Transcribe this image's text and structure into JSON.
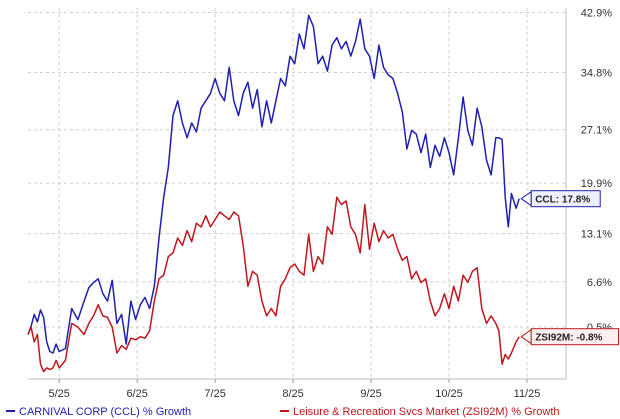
{
  "chart_data": {
    "type": "line",
    "x_ticks": [
      "5/25",
      "6/25",
      "7/25",
      "8/25",
      "9/25",
      "10/25",
      "11/25"
    ],
    "x_tick_positions": [
      0.4,
      1.4,
      2.4,
      3.4,
      4.4,
      5.4,
      6.4
    ],
    "xlim": [
      0,
      6.9
    ],
    "y_ticks": [
      "42.9%",
      "34.8%",
      "27.1%",
      "19.9%",
      "13.1%",
      "6.6%",
      "0.5%"
    ],
    "y_tick_values": [
      42.9,
      34.8,
      27.1,
      19.9,
      13.1,
      6.6,
      0.5
    ],
    "ylim": [
      -6.5,
      43.5
    ],
    "grid": true,
    "legend_position": "bottom",
    "series": [
      {
        "name": "CARNIVAL CORP (CCL) % Growth",
        "color": "#1f1fb4",
        "callout": "CCL: 17.8%",
        "x": [
          0.0,
          0.04,
          0.08,
          0.12,
          0.16,
          0.2,
          0.24,
          0.28,
          0.32,
          0.36,
          0.4,
          0.48,
          0.56,
          0.64,
          0.72,
          0.78,
          0.84,
          0.9,
          0.96,
          1.02,
          1.08,
          1.14,
          1.2,
          1.26,
          1.32,
          1.38,
          1.44,
          1.5,
          1.56,
          1.62,
          1.68,
          1.74,
          1.8,
          1.86,
          1.92,
          1.98,
          2.04,
          2.1,
          2.16,
          2.22,
          2.28,
          2.34,
          2.4,
          2.46,
          2.52,
          2.58,
          2.64,
          2.7,
          2.76,
          2.82,
          2.88,
          2.94,
          3.0,
          3.06,
          3.12,
          3.18,
          3.24,
          3.3,
          3.36,
          3.42,
          3.48,
          3.54,
          3.6,
          3.66,
          3.72,
          3.78,
          3.84,
          3.9,
          3.96,
          4.02,
          4.08,
          4.14,
          4.2,
          4.26,
          4.32,
          4.38,
          4.44,
          4.5,
          4.56,
          4.62,
          4.68,
          4.74,
          4.8,
          4.86,
          4.92,
          4.98,
          5.04,
          5.1,
          5.16,
          5.22,
          5.28,
          5.34,
          5.4,
          5.46,
          5.52,
          5.58,
          5.64,
          5.7,
          5.76,
          5.82,
          5.88,
          5.94,
          6.0,
          6.04,
          6.08,
          6.12,
          6.16,
          6.2,
          6.26,
          6.3
        ],
        "values": [
          -0.5,
          0.6,
          2.2,
          1.2,
          2.8,
          1.8,
          -1.5,
          -2.8,
          -3.0,
          -1.8,
          -2.8,
          -2.4,
          3.0,
          1.5,
          4.0,
          5.8,
          6.5,
          7.0,
          5.0,
          4.0,
          6.8,
          1.0,
          2.2,
          -1.8,
          4.0,
          1.5,
          3.5,
          4.5,
          3.0,
          6.0,
          12.5,
          18.0,
          22.0,
          29.0,
          31.0,
          28.0,
          26.0,
          28.0,
          26.8,
          30.0,
          31.0,
          32.0,
          34.0,
          32.0,
          31.0,
          35.5,
          31.0,
          29.0,
          32.0,
          33.5,
          30.0,
          32.5,
          27.5,
          31.0,
          28.0,
          31.0,
          34.0,
          33.0,
          37.0,
          36.0,
          40.0,
          38.0,
          42.5,
          41.0,
          36.0,
          37.0,
          35.0,
          38.5,
          39.5,
          38.0,
          39.0,
          37.0,
          39.0,
          42.0,
          38.0,
          37.0,
          34.0,
          38.5,
          35.5,
          34.5,
          34.0,
          32.0,
          29.5,
          24.5,
          27.0,
          26.5,
          24.0,
          26.5,
          22.0,
          25.0,
          23.5,
          26.0,
          24.0,
          21.0,
          26.0,
          31.5,
          27.0,
          25.0,
          30.0,
          27.5,
          23.0,
          21.0,
          26.0,
          26.0,
          25.8,
          18.0,
          14.0,
          18.5,
          16.5,
          17.8
        ]
      },
      {
        "name": "Leisure & Recreation Svcs Market (ZSI92M) % Growth",
        "color": "#c0161d",
        "callout": "ZSI92M: -0.8%",
        "x": [
          0.0,
          0.04,
          0.08,
          0.12,
          0.16,
          0.2,
          0.24,
          0.28,
          0.32,
          0.36,
          0.4,
          0.48,
          0.56,
          0.64,
          0.72,
          0.78,
          0.84,
          0.9,
          0.96,
          1.02,
          1.08,
          1.14,
          1.2,
          1.26,
          1.32,
          1.38,
          1.44,
          1.5,
          1.56,
          1.62,
          1.68,
          1.74,
          1.8,
          1.86,
          1.92,
          1.98,
          2.04,
          2.1,
          2.16,
          2.22,
          2.28,
          2.34,
          2.4,
          2.46,
          2.52,
          2.58,
          2.64,
          2.7,
          2.76,
          2.82,
          2.88,
          2.94,
          3.0,
          3.06,
          3.12,
          3.18,
          3.24,
          3.3,
          3.36,
          3.42,
          3.48,
          3.54,
          3.6,
          3.66,
          3.72,
          3.78,
          3.84,
          3.9,
          3.96,
          4.02,
          4.08,
          4.14,
          4.2,
          4.26,
          4.32,
          4.38,
          4.44,
          4.5,
          4.56,
          4.62,
          4.68,
          4.74,
          4.8,
          4.86,
          4.92,
          4.98,
          5.04,
          5.1,
          5.16,
          5.22,
          5.28,
          5.34,
          5.4,
          5.46,
          5.52,
          5.58,
          5.64,
          5.7,
          5.76,
          5.82,
          5.88,
          5.94,
          6.0,
          6.04,
          6.08,
          6.12,
          6.16,
          6.2,
          6.26,
          6.3
        ],
        "values": [
          -0.5,
          0.5,
          -1.5,
          -0.5,
          -4.5,
          -5.5,
          -5.0,
          -5.2,
          -5.0,
          -4.0,
          -5.0,
          -4.0,
          1.0,
          0.5,
          -0.5,
          1.0,
          2.0,
          3.5,
          2.0,
          1.8,
          0.5,
          -3.0,
          -2.0,
          -2.5,
          -1.0,
          -1.2,
          -0.8,
          -1.0,
          0.0,
          4.0,
          7.0,
          7.5,
          10.0,
          10.5,
          12.5,
          11.5,
          13.5,
          12.0,
          14.5,
          14.0,
          15.5,
          14.0,
          15.0,
          16.0,
          15.5,
          15.0,
          16.0,
          15.5,
          11.5,
          6.0,
          8.0,
          7.5,
          4.0,
          2.0,
          3.0,
          2.0,
          6.0,
          7.0,
          8.5,
          9.0,
          8.0,
          7.5,
          13.0,
          8.0,
          10.0,
          9.0,
          14.0,
          13.0,
          18.0,
          17.0,
          17.5,
          14.0,
          13.0,
          10.5,
          17.0,
          11.0,
          14.5,
          12.0,
          13.5,
          12.5,
          13.0,
          11.0,
          9.5,
          10.0,
          7.0,
          8.0,
          6.5,
          7.0,
          4.0,
          2.0,
          3.0,
          5.0,
          3.0,
          6.0,
          4.0,
          7.5,
          6.5,
          8.0,
          8.5,
          3.0,
          1.0,
          2.0,
          1.0,
          0.0,
          -4.5,
          -3.2,
          -3.8,
          -3.0,
          -1.5,
          -0.8
        ]
      }
    ]
  }
}
